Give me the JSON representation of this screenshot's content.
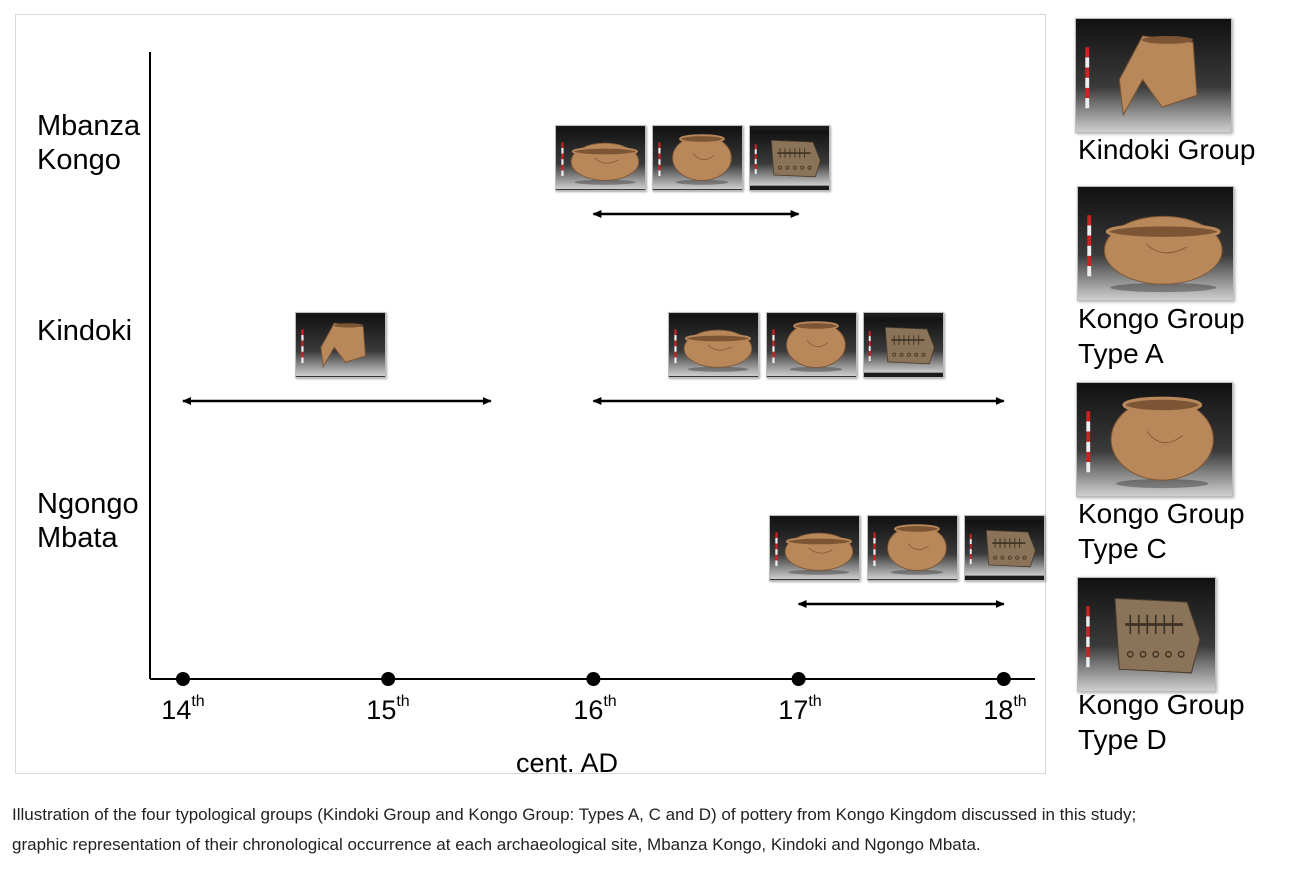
{
  "chart_data": {
    "type": "timeline",
    "title": "",
    "xlabel": "cent. AD",
    "x_ticks": [
      {
        "value": 14,
        "num": "14",
        "sup": "th"
      },
      {
        "value": 15,
        "num": "15",
        "sup": "th"
      },
      {
        "value": 16,
        "num": "16",
        "sup": "th"
      },
      {
        "value": 17,
        "num": "17",
        "sup": "th"
      },
      {
        "value": 18,
        "num": "18",
        "sup": "th"
      }
    ],
    "xlim": [
      13.84,
      18.15
    ],
    "sites": [
      {
        "name_line1": "Mbanza",
        "name_line2": "Kongo",
        "ranges": [
          {
            "start": 16,
            "end": 17,
            "groups": [
              "Kongo Group Type A",
              "Kongo Group Type C",
              "Kongo Group Type D"
            ]
          }
        ]
      },
      {
        "name_line1": "Kindoki",
        "name_line2": "",
        "ranges": [
          {
            "start": 14,
            "end": 15.5,
            "groups": [
              "Kindoki Group"
            ]
          },
          {
            "start": 16,
            "end": 18,
            "groups": [
              "Kongo Group Type A",
              "Kongo Group Type C",
              "Kongo Group Type D"
            ]
          }
        ]
      },
      {
        "name_line1": "Ngongo",
        "name_line2": "Mbata",
        "ranges": [
          {
            "start": 17,
            "end": 18,
            "groups": [
              "Kongo Group Type A",
              "Kongo Group Type C",
              "Kongo Group Type D"
            ]
          }
        ]
      }
    ]
  },
  "legend": {
    "groups": [
      {
        "line1": "Kindoki Group",
        "line2": "",
        "image": "kindoki-pot-photo"
      },
      {
        "line1": "Kongo Group",
        "line2": "Type A",
        "image": "kongo-type-a-pot-photo"
      },
      {
        "line1": "Kongo Group",
        "line2": "Type C",
        "image": "kongo-type-c-pot-photo"
      },
      {
        "line1": "Kongo Group",
        "line2": "Type D",
        "image": "kongo-type-d-sherd-photo"
      }
    ]
  },
  "caption": {
    "line1": "Illustration of the four typological groups (Kindoki Group and Kongo Group: Types A, C and D) of pottery from Kongo Kingdom discussed in this study;",
    "line2": "graphic representation of their chronological occurrence at each archaeological site, Mbanza Kongo, Kindoki and Ngongo Mbata."
  },
  "colors": {
    "axis": "#000000",
    "photo_bg": "#1b1b1b",
    "pot": "#b8875a",
    "pot_dark": "#7c5534",
    "sherd": "#8a7358"
  }
}
